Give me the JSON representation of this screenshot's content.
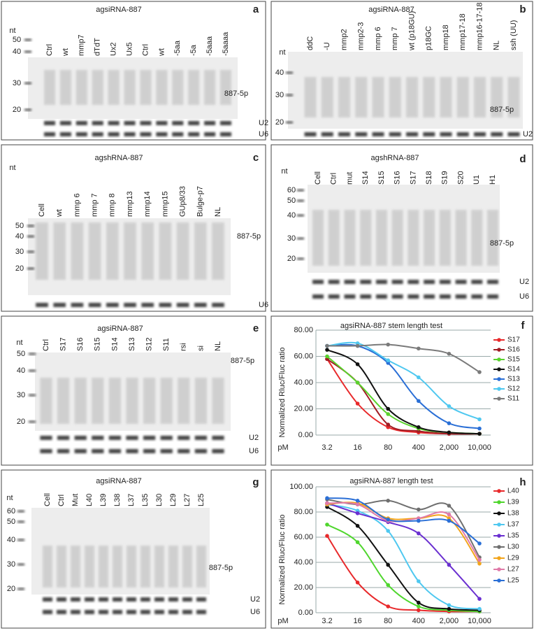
{
  "gels": [
    {
      "label": "a",
      "title": "agsiRNA-887",
      "unit": "nt",
      "markers": [
        "50",
        "40",
        "30",
        "20"
      ],
      "lanes": [
        "Ctrl",
        "wt",
        "mmp7",
        "dTdT",
        "Ux2",
        "Ux5",
        "Ctrl",
        "wt",
        "-5aa",
        "-5a",
        "-5aaa",
        "-5aaaa"
      ],
      "band": "887-5p",
      "controls": [
        "U2",
        "U6"
      ]
    },
    {
      "label": "b",
      "title": "agsiRNA-887",
      "unit": "nt",
      "markers": [
        "40",
        "30",
        "20"
      ],
      "lanes": [
        "ddC",
        "-U",
        "mmp2",
        "mmp2-3",
        "mmp 6",
        "mmp 7",
        "wt (p18GU)",
        "p18GC",
        "mmp18",
        "mmp17-18",
        "mmp16-17-18",
        "NL",
        "ssh (UU)"
      ],
      "band": "887-5p",
      "controls": [
        "U2"
      ]
    },
    {
      "label": "c",
      "title": "agshRNA-887",
      "unit": "nt",
      "markers": [
        "50",
        "40",
        "30",
        "20"
      ],
      "lanes": [
        "Cell",
        "wt",
        "mmp 6",
        "mmp 7",
        "mmp 8",
        "mmp13",
        "mmp14",
        "mmp15",
        "GUp8/33",
        "Bulge-p7",
        "NL"
      ],
      "band": "887-5p",
      "controls": [
        "U6"
      ]
    },
    {
      "label": "d",
      "title": "agshRNA-887",
      "unit": "nt",
      "markers": [
        "60",
        "50",
        "40",
        "30",
        "20"
      ],
      "lanes": [
        "Cell",
        "Ctrl",
        "mut",
        "S14",
        "S15",
        "S16",
        "S17",
        "S18",
        "S19",
        "S20",
        "U1",
        "H1"
      ],
      "band": "887-5p",
      "controls": [
        "U2",
        "U6"
      ]
    },
    {
      "label": "e",
      "title": "agsiRNA-887",
      "unit": "nt",
      "markers": [
        "50",
        "40",
        "30",
        "20"
      ],
      "lanes": [
        "Ctrl",
        "S17",
        "S16",
        "S15",
        "S14",
        "S13",
        "S12",
        "S11",
        "rsi",
        "si",
        "NL"
      ],
      "band": "887-5p",
      "controls": [
        "U2",
        "U6"
      ]
    },
    {
      "label": "g",
      "title": "agsiRNA-887",
      "unit": "nt",
      "markers": [
        "60",
        "50",
        "40",
        "30",
        "20"
      ],
      "lanes": [
        "Cell",
        "Ctrl",
        "Mut",
        "L40",
        "L39",
        "L38",
        "L37",
        "L35",
        "L30",
        "L29",
        "L27",
        "L25"
      ],
      "band": "887-5p",
      "controls": [
        "U2",
        "U6"
      ]
    }
  ],
  "chart_data": [
    {
      "type": "line",
      "label": "f",
      "title": "agsiRNA-887 stem length test",
      "y_label": "Normalized Rluc/Fluc ratio",
      "x_label": "pM",
      "categories": [
        "3.2",
        "16",
        "80",
        "400",
        "2,000",
        "10,000"
      ],
      "ylim": [
        0,
        80
      ],
      "yticks": [
        {
          "value": 0,
          "label": "0.00"
        },
        {
          "value": 20,
          "label": "20.00"
        },
        {
          "value": 40,
          "label": "40.00"
        },
        {
          "value": 60,
          "label": "60.00"
        },
        {
          "value": 80,
          "label": "80.00"
        }
      ],
      "grid": true,
      "series": [
        {
          "name": "S17",
          "color": "#e8292b",
          "values": [
            58,
            24,
            6,
            2,
            1,
            1
          ]
        },
        {
          "name": "S16",
          "color": "#a01c24",
          "values": [
            58,
            40,
            8,
            3,
            1,
            1
          ]
        },
        {
          "name": "S15",
          "color": "#5ad22d",
          "values": [
            60,
            40,
            16,
            5,
            2,
            1
          ]
        },
        {
          "name": "S14",
          "color": "#111111",
          "values": [
            65,
            54,
            20,
            6,
            2,
            1
          ]
        },
        {
          "name": "S13",
          "color": "#2a6fd6",
          "values": [
            68,
            68,
            55,
            26,
            9,
            5
          ]
        },
        {
          "name": "S12",
          "color": "#4fc8f0",
          "values": [
            68,
            70,
            57,
            44,
            22,
            12
          ]
        },
        {
          "name": "S11",
          "color": "#7a7a7a",
          "values": [
            68,
            68,
            69,
            66,
            62,
            48
          ]
        }
      ]
    },
    {
      "type": "line",
      "label": "h",
      "title": "agsiRNA-887 length test",
      "y_label": "Normalized Rluc/Fluc ratio",
      "x_label": "pM",
      "categories": [
        "3.2",
        "16",
        "80",
        "400",
        "2,000",
        "10,000"
      ],
      "ylim": [
        0,
        100
      ],
      "yticks": [
        {
          "value": 0,
          "label": "0.00"
        },
        {
          "value": 20,
          "label": "20.00"
        },
        {
          "value": 40,
          "label": "40.00"
        },
        {
          "value": 60,
          "label": "60.00"
        },
        {
          "value": 80,
          "label": "80.00"
        },
        {
          "value": 100,
          "label": "100.00"
        }
      ],
      "grid": true,
      "series": [
        {
          "name": "L40",
          "color": "#e8292b",
          "values": [
            61,
            24,
            5,
            2,
            1,
            1
          ]
        },
        {
          "name": "L39",
          "color": "#4fd62d",
          "values": [
            70,
            56,
            22,
            5,
            2,
            1
          ]
        },
        {
          "name": "L38",
          "color": "#111111",
          "values": [
            84,
            69,
            38,
            8,
            3,
            2
          ]
        },
        {
          "name": "L37",
          "color": "#4fc8f0",
          "values": [
            86,
            81,
            65,
            25,
            6,
            3
          ]
        },
        {
          "name": "L35",
          "color": "#6a2fd0",
          "values": [
            87,
            79,
            72,
            63,
            38,
            11
          ]
        },
        {
          "name": "L30",
          "color": "#6f6f6f",
          "values": [
            90,
            86,
            89,
            82,
            85,
            44
          ]
        },
        {
          "name": "L29",
          "color": "#f2a51c",
          "values": [
            86,
            87,
            75,
            75,
            75,
            39
          ]
        },
        {
          "name": "L27",
          "color": "#e07aa8",
          "values": [
            87,
            86,
            73,
            75,
            78,
            42
          ]
        },
        {
          "name": "L25",
          "color": "#2a6fd6",
          "values": [
            91,
            89,
            74,
            73,
            73,
            55
          ]
        }
      ]
    }
  ]
}
